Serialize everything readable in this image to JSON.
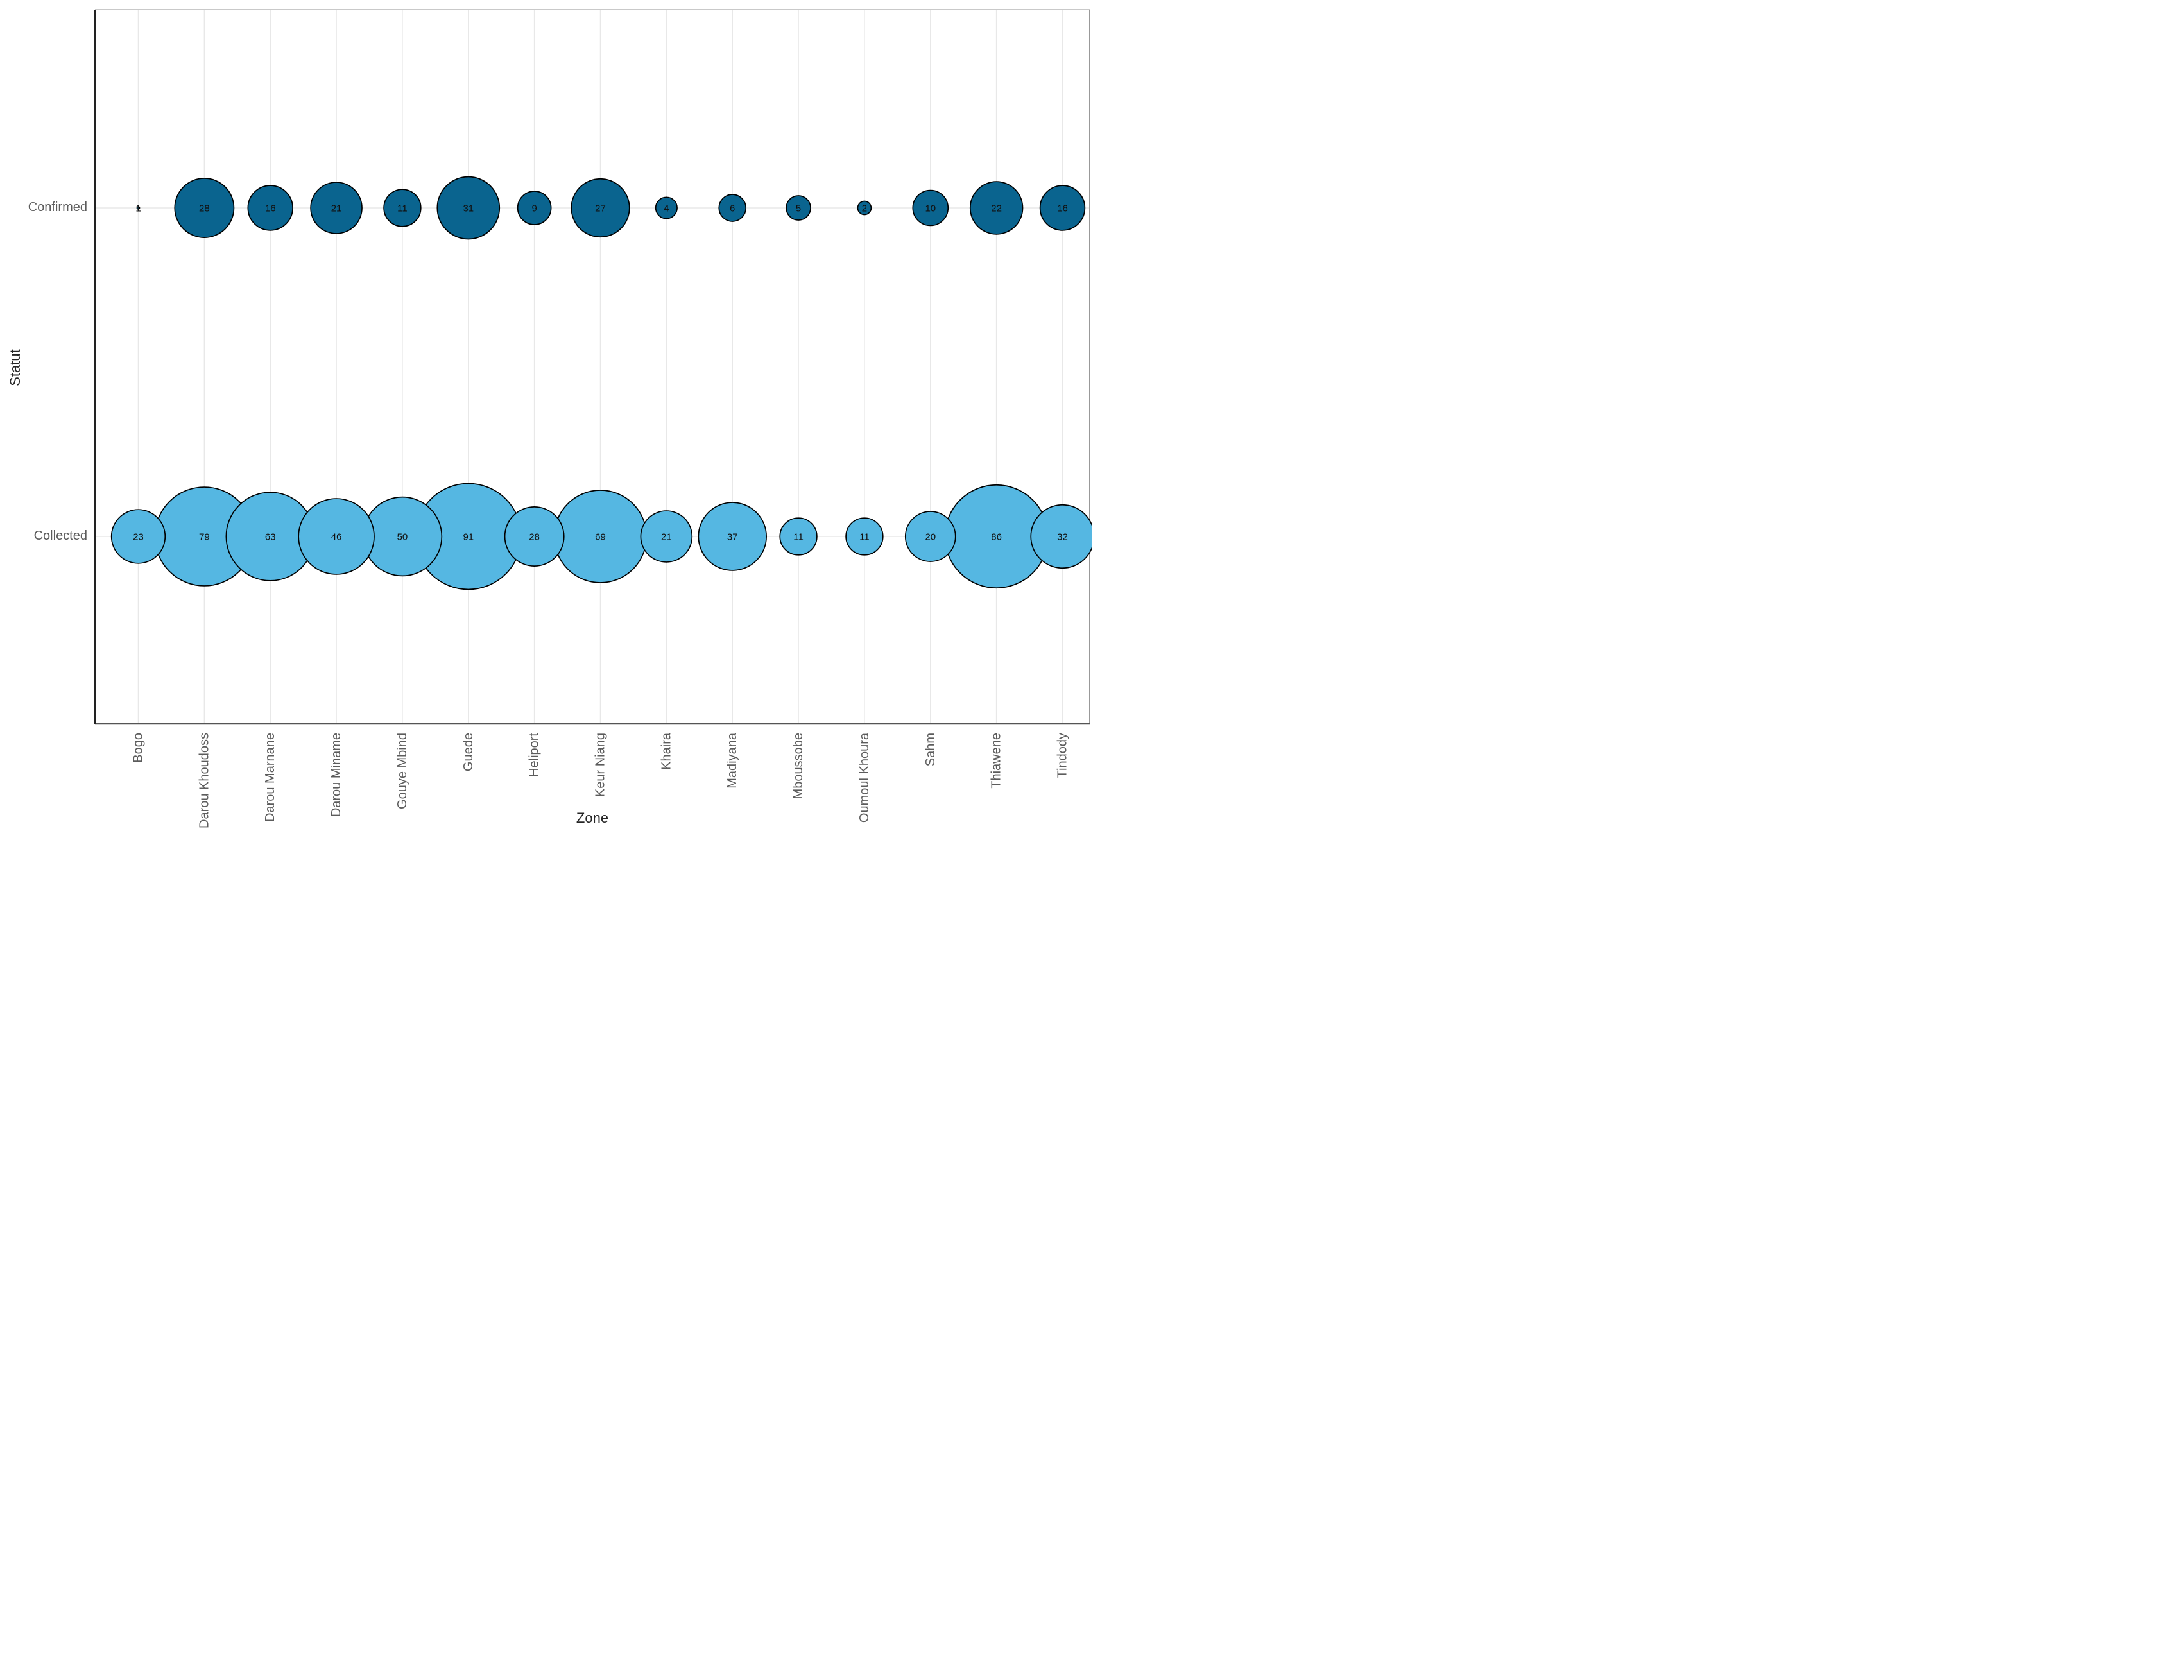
{
  "chart_data": {
    "type": "scatter",
    "subtype": "bubble",
    "title": "",
    "xlabel": "Zone",
    "ylabel": "Statut",
    "categories": [
      "Bogo",
      "Darou Khoudoss",
      "Darou Marnane",
      "Darou Miname",
      "Gouye Mbind",
      "Guede",
      "Heliport",
      "Keur Niang",
      "Khaira",
      "Madiyana",
      "Mboussobe",
      "Oumoul Khoura",
      "Sahm",
      "Thiawene",
      "Tindody"
    ],
    "rows": [
      {
        "label": "Confirmed",
        "color": "#0a648f",
        "values": [
          1,
          28,
          16,
          21,
          11,
          31,
          9,
          27,
          4,
          6,
          5,
          2,
          10,
          22,
          16
        ]
      },
      {
        "label": "Collected",
        "color": "#55b7e2",
        "values": [
          23,
          79,
          63,
          46,
          50,
          91,
          28,
          69,
          21,
          37,
          11,
          11,
          20,
          86,
          32
        ]
      }
    ],
    "size_scale": {
      "vmin": 1,
      "vmax": 91,
      "rmin": 2,
      "rmax": 82.5
    },
    "grid": true,
    "legend": "none",
    "colors": {
      "bubble_stroke": "#000000",
      "grid_line": "#e8e8e8",
      "border_top": "#c9c9c9",
      "border_right": "#999999",
      "border_bottom": "#555555",
      "border_left": "#222222",
      "tick_label": "#5c5c5c",
      "axis_title": "#262626",
      "value_label": "#111111"
    }
  }
}
